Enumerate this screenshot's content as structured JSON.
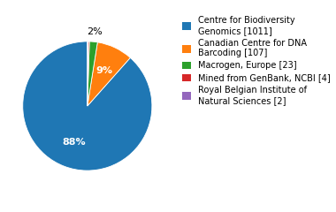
{
  "chart_data": {
    "type": "pie",
    "categories": [
      "Centre for Biodiversity\nGenomics [1011]",
      "Canadian Centre for DNA\nBarcoding [107]",
      "Macrogen, Europe [23]",
      "Mined from GenBank, NCBI [4]",
      "Royal Belgian Institute of\nNatural Sciences [2]"
    ],
    "values": [
      88,
      9,
      2,
      0.3,
      0.2
    ],
    "value_labels": [
      "88%",
      "9%",
      "2%",
      null,
      null
    ],
    "data_labels": true,
    "legend": "upper left"
  }
}
